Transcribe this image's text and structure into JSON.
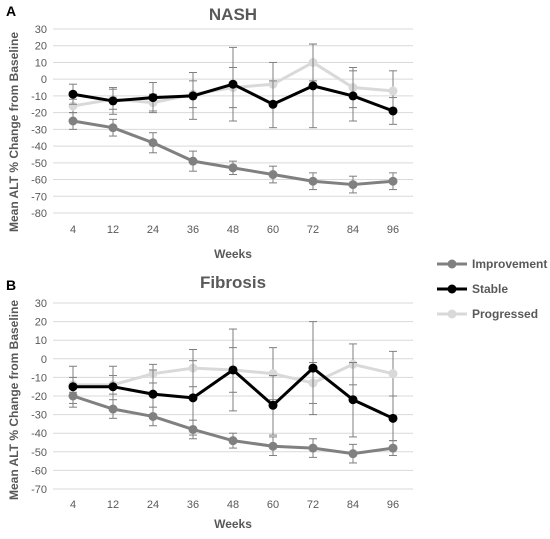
{
  "panels": [
    {
      "letter": "A",
      "chart_title": "NASH",
      "xlabel": "Weeks",
      "ylabel": "Mean ALT % Change from Baseline"
    },
    {
      "letter": "B",
      "chart_title": "Fibrosis",
      "xlabel": "Weeks",
      "ylabel": "Mean ALT % Change from Baseline"
    }
  ],
  "legend": [
    {
      "label": "Improvement",
      "color": "#808080"
    },
    {
      "label": "Stable",
      "color": "#000000"
    },
    {
      "label": "Progressed",
      "color": "#d9d9d9"
    }
  ],
  "chart_data": [
    {
      "type": "line",
      "title": "NASH",
      "xlabel": "Weeks",
      "ylabel": "Mean ALT % Change from Baseline",
      "categories": [
        "4",
        "12",
        "24",
        "36",
        "48",
        "60",
        "72",
        "84",
        "96"
      ],
      "ylim": [
        -80,
        30
      ],
      "yticks": [
        30,
        20,
        10,
        0,
        -10,
        -20,
        -30,
        -40,
        -50,
        -60,
        -70,
        -80
      ],
      "grid": true,
      "series": [
        {
          "name": "Improvement",
          "color": "#808080",
          "values": [
            -25,
            -29,
            -38,
            -49,
            -53,
            -57,
            -61,
            -63,
            -61
          ],
          "error": [
            5,
            5,
            6,
            6,
            4,
            5,
            5,
            5,
            5
          ]
        },
        {
          "name": "Stable",
          "color": "#000000",
          "values": [
            -9,
            -13,
            -11,
            -10,
            -3,
            -15,
            -4,
            -10,
            -19
          ],
          "error": [
            6,
            8,
            9,
            14,
            22,
            14,
            25,
            15,
            8
          ]
        },
        {
          "name": "Progressed",
          "color": "#d9d9d9",
          "values": [
            -16,
            -12,
            -14,
            -9,
            -5,
            -3,
            10,
            -5,
            -7
          ],
          "error": [
            4,
            6,
            5,
            8,
            12,
            13,
            11,
            12,
            12
          ]
        }
      ]
    },
    {
      "type": "line",
      "title": "Fibrosis",
      "xlabel": "Weeks",
      "ylabel": "Mean ALT % Change from Baseline",
      "categories": [
        "4",
        "12",
        "24",
        "36",
        "48",
        "60",
        "72",
        "84",
        "96"
      ],
      "ylim": [
        -70,
        30
      ],
      "yticks": [
        30,
        20,
        10,
        0,
        -10,
        -20,
        -30,
        -40,
        -50,
        -60,
        -70
      ],
      "grid": true,
      "series": [
        {
          "name": "Improvement",
          "color": "#808080",
          "values": [
            -20,
            -27,
            -31,
            -38,
            -44,
            -47,
            -48,
            -51,
            -48
          ],
          "error": [
            4,
            5,
            5,
            5,
            4,
            5,
            5,
            5,
            4
          ]
        },
        {
          "name": "Stable",
          "color": "#000000",
          "values": [
            -15,
            -15,
            -19,
            -21,
            -6,
            -25,
            -5,
            -22,
            -32
          ],
          "error": [
            11,
            11,
            13,
            20,
            22,
            16,
            25,
            20,
            12
          ]
        },
        {
          "name": "Progressed",
          "color": "#d9d9d9",
          "values": [
            -14,
            -14,
            -8,
            -5,
            -6,
            -8,
            -13,
            -3,
            -8
          ],
          "error": [
            4,
            5,
            5,
            10,
            12,
            14,
            11,
            11,
            12
          ]
        }
      ]
    }
  ]
}
